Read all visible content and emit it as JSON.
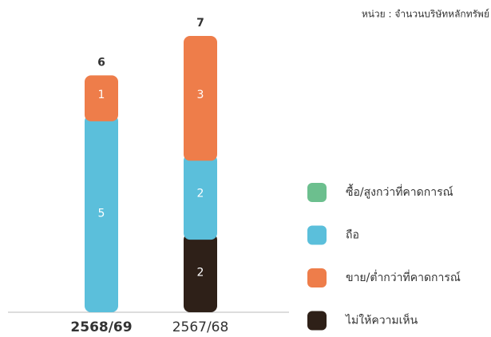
{
  "chart_data": {
    "type": "stacked_bar",
    "unit_note": "หน่วย : จำนวนบริษัทหลักทรัพย์",
    "categories": [
      "2568/69",
      "2567/68"
    ],
    "highlight_category": 0,
    "series": [
      {
        "name": "ไม่ให้ความเห็น",
        "color": "#2e2018",
        "values": [
          0,
          2
        ]
      },
      {
        "name": "ถือ",
        "color": "#5bbfdb",
        "values": [
          5,
          2
        ]
      },
      {
        "name": "ขาย/ต่ำกว่าที่คาดการณ์",
        "color": "#ee7d4a",
        "values": [
          1,
          3
        ]
      },
      {
        "name": "ซื้อ/สูงกว่าที่คาดการณ์",
        "color": "#6cbf8e",
        "values": [
          0,
          0
        ]
      }
    ],
    "legend_order": [
      3,
      1,
      2,
      0
    ],
    "totals": [
      6,
      7
    ],
    "ylim": [
      0,
      7
    ]
  }
}
